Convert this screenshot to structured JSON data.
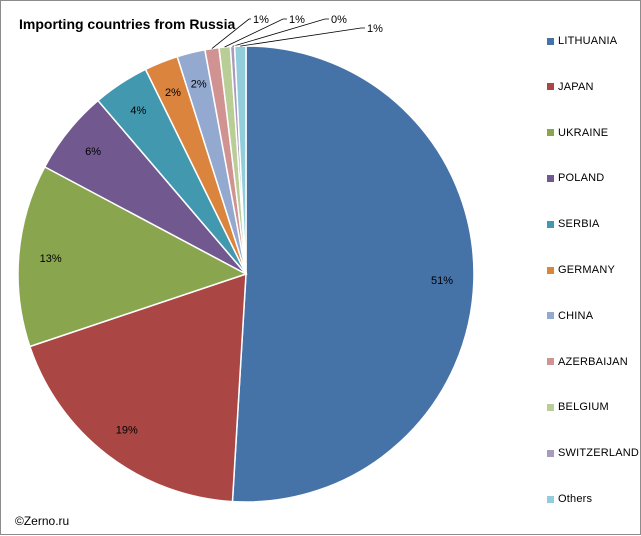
{
  "title": "Importing countries from Russia",
  "footer": "©Zerno.ru",
  "chart_data": {
    "type": "pie",
    "title": "Importing countries from Russia",
    "start_angle_deg": 0,
    "direction": "clockwise",
    "legend_position": "right",
    "slices": [
      {
        "name": "LITHUANIA",
        "value": 51.2,
        "label": "51%",
        "color": "#4572A7"
      },
      {
        "name": "JAPAN",
        "value": 19.0,
        "label": "19%",
        "color": "#AA4643"
      },
      {
        "name": "UKRAINE",
        "value": 13.0,
        "label": "13%",
        "color": "#89A54E"
      },
      {
        "name": "POLAND",
        "value": 6.0,
        "label": "6%",
        "color": "#71588F"
      },
      {
        "name": "SERBIA",
        "value": 4.0,
        "label": "4%",
        "color": "#4198AF"
      },
      {
        "name": "GERMANY",
        "value": 2.4,
        "label": "2%",
        "color": "#DB843D"
      },
      {
        "name": "CHINA",
        "value": 2.0,
        "label": "2%",
        "color": "#93A9CF"
      },
      {
        "name": "AZERBAIJAN",
        "value": 1.0,
        "label": "1%",
        "color": "#D19392"
      },
      {
        "name": "BELGIUM",
        "value": 0.8,
        "label": "1%",
        "color": "#B9CD96"
      },
      {
        "name": "SWITZERLAND",
        "value": 0.3,
        "label": "0%",
        "color": "#A99BBD"
      },
      {
        "name": "Others",
        "value": 0.8,
        "label": "1%",
        "color": "#92CDDC"
      }
    ]
  }
}
